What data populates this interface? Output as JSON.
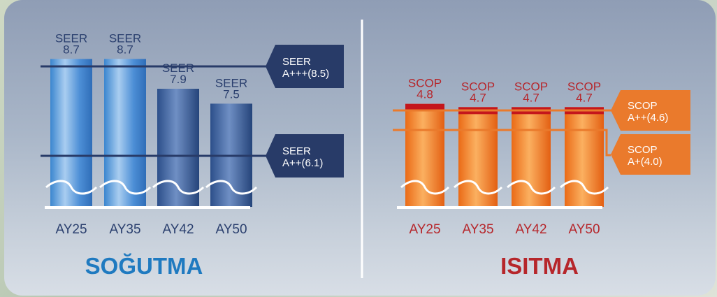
{
  "chart_data": [
    {
      "type": "bar",
      "title": "SOĞUTMA",
      "categories": [
        "AY25",
        "AY35",
        "AY42",
        "AY50"
      ],
      "value_prefix": "SEER",
      "values": [
        8.7,
        8.7,
        7.9,
        7.5
      ],
      "color": "#2f5b9a",
      "title_color": "#1f7ac0",
      "reference_lines": [
        {
          "line1": "SEER",
          "line2": "A+++(8.5)",
          "value": 8.5
        },
        {
          "line1": "SEER",
          "line2": "A++(6.1)",
          "value": 6.1
        }
      ]
    },
    {
      "type": "bar",
      "title": "ISITMA",
      "categories": [
        "AY25",
        "AY35",
        "AY42",
        "AY50"
      ],
      "value_prefix": "SCOP",
      "values": [
        4.8,
        4.7,
        4.7,
        4.7
      ],
      "color": "#b6262b",
      "title_color": "#b6262b",
      "reference_lines": [
        {
          "line1": "SCOP",
          "line2": "A++(4.6)",
          "value": 4.6
        },
        {
          "line1": "SCOP",
          "line2": "A+(4.0)",
          "value": 4.0
        }
      ]
    }
  ]
}
